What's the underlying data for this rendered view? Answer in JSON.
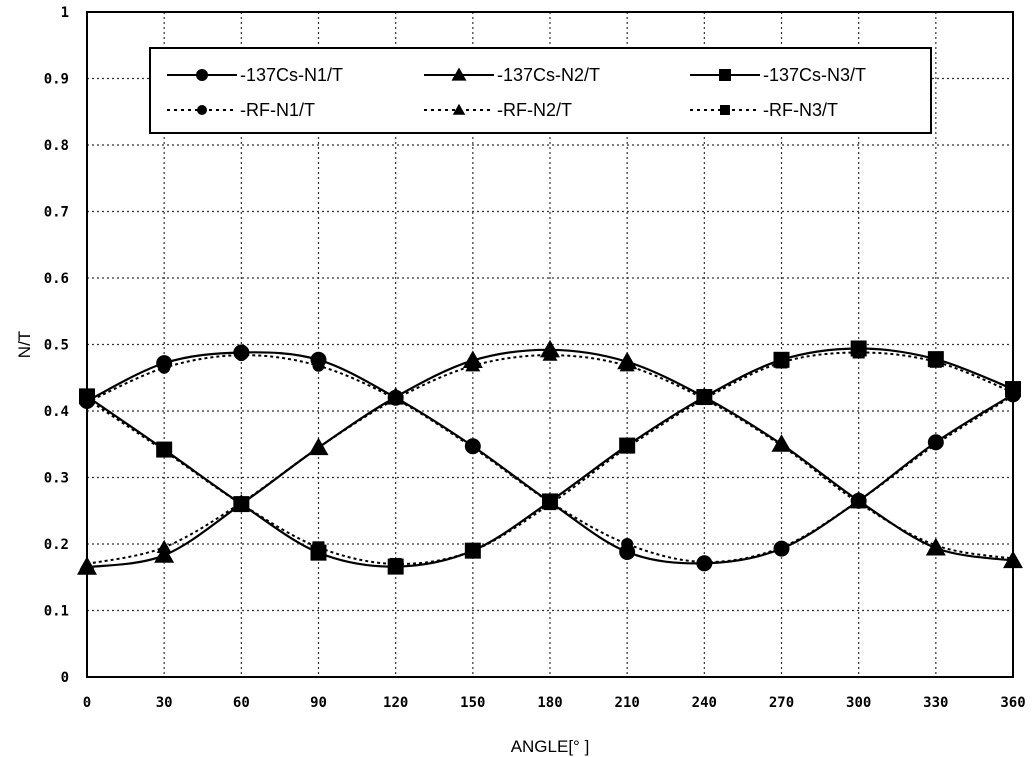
{
  "chart_data": {
    "type": "line",
    "xlabel": "ANGLE[° ]",
    "ylabel": "N/T",
    "xlim": [
      0,
      360
    ],
    "ylim": [
      0,
      1
    ],
    "x": [
      0,
      30,
      60,
      90,
      120,
      150,
      180,
      210,
      240,
      270,
      300,
      330,
      360
    ],
    "x_ticks": [
      "0",
      "30",
      "60",
      "90",
      "120",
      "150",
      "180",
      "210",
      "240",
      "270",
      "300",
      "330",
      "360"
    ],
    "y_ticks": [
      "0",
      "0.1",
      "0.2",
      "0.3",
      "0.4",
      "0.5",
      "0.6",
      "0.7",
      "0.8",
      "0.9",
      "1"
    ],
    "grid": true,
    "legend_position": "top",
    "series": [
      {
        "name": "-137Cs-N1/T",
        "marker": "circle",
        "line": "solid",
        "values": [
          0.415,
          0.472,
          0.488,
          0.477,
          0.42,
          0.347,
          0.263,
          0.188,
          0.171,
          0.193,
          0.265,
          0.353,
          0.425
        ]
      },
      {
        "name": "-137Cs-N2/T",
        "marker": "triangle",
        "line": "solid",
        "values": [
          0.165,
          0.183,
          0.26,
          0.345,
          0.421,
          0.476,
          0.492,
          0.474,
          0.421,
          0.35,
          0.265,
          0.194,
          0.175
        ]
      },
      {
        "name": "-137Cs-N3/T",
        "marker": "square",
        "line": "solid",
        "values": [
          0.422,
          0.342,
          0.26,
          0.187,
          0.166,
          0.19,
          0.264,
          0.348,
          0.421,
          0.477,
          0.494,
          0.478,
          0.433
        ]
      },
      {
        "name": "-RF-N1/T",
        "marker": "circle",
        "line": "dotted",
        "values": [
          0.413,
          0.465,
          0.484,
          0.468,
          0.418,
          0.345,
          0.263,
          0.2,
          0.173,
          0.195,
          0.265,
          0.35,
          0.423
        ]
      },
      {
        "name": "-RF-N2/T",
        "marker": "triangle",
        "line": "dotted",
        "values": [
          0.17,
          0.195,
          0.262,
          0.345,
          0.418,
          0.468,
          0.484,
          0.468,
          0.418,
          0.348,
          0.262,
          0.198,
          0.178
        ]
      },
      {
        "name": "-RF-N3/T",
        "marker": "square",
        "line": "dotted",
        "values": [
          0.418,
          0.34,
          0.26,
          0.195,
          0.17,
          0.19,
          0.26,
          0.345,
          0.418,
          0.473,
          0.488,
          0.474,
          0.428
        ]
      }
    ]
  }
}
